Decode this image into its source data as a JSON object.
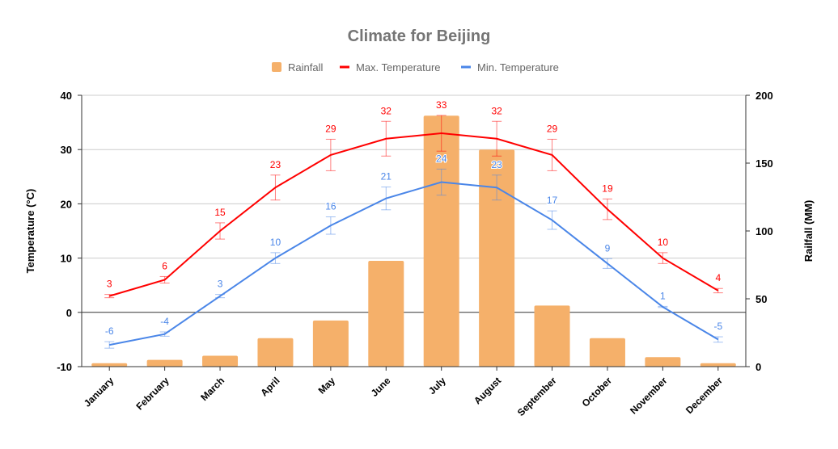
{
  "chart_data": {
    "type": "bar+line",
    "title": "Climate for Beijing",
    "categories": [
      "January",
      "February",
      "March",
      "April",
      "May",
      "June",
      "July",
      "August",
      "September",
      "October",
      "November",
      "December"
    ],
    "series": [
      {
        "name": "Rainfall",
        "type": "bar",
        "axis": "right",
        "color": "#f5b06a",
        "values": [
          2.5,
          5,
          8,
          21,
          34,
          78,
          185,
          160,
          45,
          21,
          7,
          2.5
        ]
      },
      {
        "name": "Max. Temperature",
        "type": "line",
        "axis": "left",
        "color": "#ff0000",
        "values": [
          3,
          6,
          15,
          23,
          29,
          32,
          33,
          32,
          29,
          19,
          10,
          4
        ],
        "error_percent": 10,
        "data_labels": true
      },
      {
        "name": "Min. Temperature",
        "type": "line",
        "axis": "left",
        "color": "#4a86e8",
        "values": [
          -6,
          -4,
          3,
          10,
          16,
          21,
          24,
          23,
          17,
          9,
          1,
          -5
        ],
        "error_percent": 10,
        "data_labels": true
      }
    ],
    "y_left": {
      "label": "Temperature (°C)",
      "ylim": [
        -10,
        40
      ],
      "ticks": [
        "-10",
        "0",
        "10",
        "20",
        "30",
        "40"
      ]
    },
    "y_right": {
      "label": "Railfall (MM)",
      "ylim": [
        0,
        200
      ],
      "ticks": [
        "0",
        "50",
        "100",
        "150",
        "200"
      ]
    },
    "grid": true,
    "legend_position": "top"
  }
}
